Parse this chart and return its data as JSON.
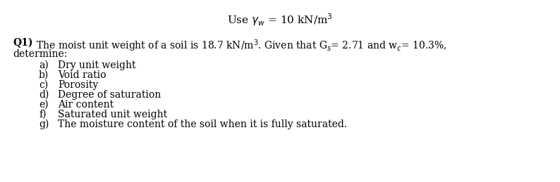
{
  "bg_color": "#ffffff",
  "text_color": "#000000",
  "title_text": "Use $\\gamma_w$ = 10 kN/m$^3$",
  "title_fontsize": 11,
  "body_fontsize": 10,
  "item_fontsize": 10,
  "q1_bold": "Q1)",
  "q1_rest": " The moist unit weight of a soil is 18.7 kN/m$^3$. Given that G$_s$= 2.71 and w$_c$= 10.3%,",
  "determine": "determine:",
  "items_label": [
    "a)",
    "b)",
    "c)",
    "d)",
    "e)",
    "f)",
    "g)"
  ],
  "items_text": [
    "Dry unit weight",
    "Void ratio",
    "Porosity",
    "Degree of saturation",
    "Air content",
    "Saturated unit weight",
    "The moisture content of the soil when it is fully saturated."
  ],
  "item_g_underline": true
}
